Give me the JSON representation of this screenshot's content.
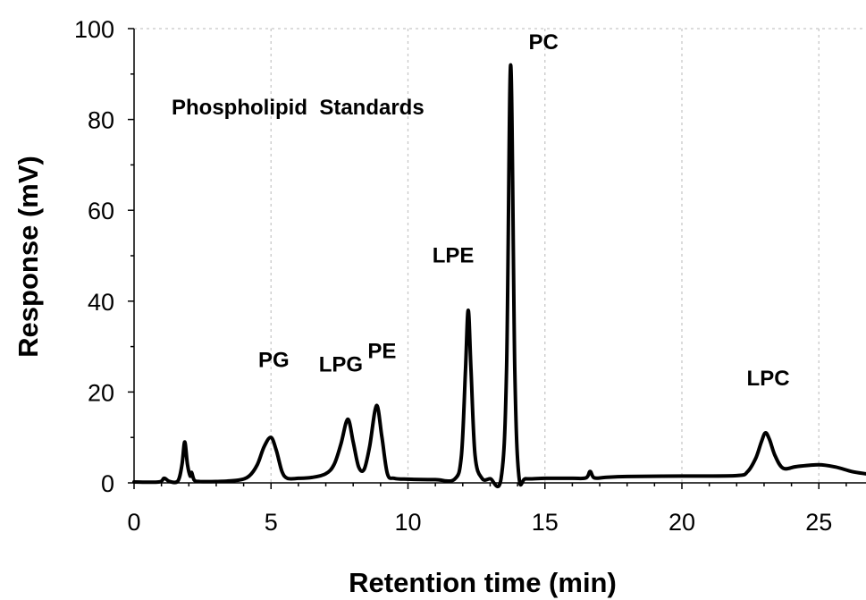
{
  "chart_data": {
    "type": "line",
    "title": "Phospholipid  Standards",
    "xlabel": "Retention time (min)",
    "ylabel": "Response (mV)",
    "xlim": [
      0,
      26.7
    ],
    "ylim": [
      0,
      100
    ],
    "x_ticks": [
      0,
      5,
      10,
      15,
      20,
      25
    ],
    "y_ticks": [
      0,
      20,
      40,
      60,
      80,
      100
    ],
    "grid": "vertical dotted lines at x ticks, horizontal dotted line at y max",
    "line_color": "#000000",
    "peaks": [
      {
        "label": "PG",
        "x": 5.0,
        "y": 10
      },
      {
        "label": "LPG",
        "x": 7.8,
        "y": 14
      },
      {
        "label": "PE",
        "x": 8.85,
        "y": 17
      },
      {
        "label": "LPE",
        "x": 12.2,
        "y": 38
      },
      {
        "label": "PC",
        "x": 13.75,
        "y": 92
      },
      {
        "label": "LPC",
        "x": 23.05,
        "y": 11
      }
    ],
    "series": [
      {
        "x": [
          0.0,
          0.9,
          1.1,
          1.3,
          1.6,
          1.75,
          1.85,
          1.95,
          2.05,
          2.1,
          2.2,
          2.4,
          3.0,
          3.8,
          4.2,
          4.5,
          4.75,
          5.0,
          5.2,
          5.4,
          5.6,
          6.0,
          6.5,
          7.0,
          7.3,
          7.55,
          7.8,
          8.0,
          8.2,
          8.4,
          8.6,
          8.85,
          9.05,
          9.25,
          9.5,
          10.0,
          11.0,
          11.7,
          11.95,
          12.1,
          12.2,
          12.3,
          12.45,
          12.7,
          13.0,
          13.4,
          13.6,
          13.75,
          13.9,
          14.05,
          14.3,
          15.0,
          16.0,
          16.5,
          16.65,
          16.8,
          17.2,
          18.0,
          20.0,
          22.0,
          22.4,
          22.7,
          22.9,
          23.05,
          23.2,
          23.4,
          23.7,
          24.2,
          25.0,
          25.6,
          26.2,
          26.7
        ],
        "y": [
          0.2,
          0.2,
          1.0,
          0.3,
          0.4,
          4.0,
          9.0,
          4.0,
          1.5,
          2.3,
          0.6,
          0.3,
          0.3,
          0.6,
          1.5,
          4.0,
          8.0,
          10.0,
          7.0,
          2.5,
          1.0,
          1.0,
          1.2,
          2.0,
          4.0,
          8.5,
          14.0,
          9.0,
          3.5,
          3.0,
          8.0,
          17.0,
          10.0,
          2.0,
          1.0,
          0.8,
          0.7,
          0.8,
          6.0,
          25.0,
          38.0,
          25.0,
          6.0,
          1.0,
          0.9,
          1.0,
          25.0,
          92.0,
          25.0,
          1.5,
          0.9,
          1.0,
          1.0,
          1.1,
          2.5,
          1.1,
          1.2,
          1.4,
          1.5,
          1.6,
          2.5,
          5.5,
          9.0,
          11.0,
          9.5,
          6.0,
          3.2,
          3.6,
          4.0,
          3.5,
          2.5,
          2.0
        ]
      }
    ]
  }
}
